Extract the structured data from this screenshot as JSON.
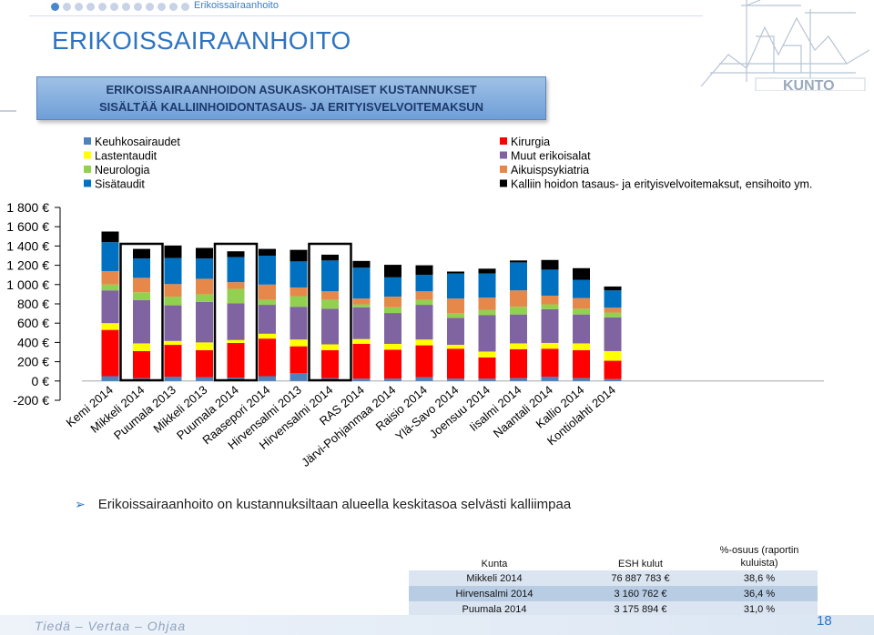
{
  "header": {
    "section_label": "Erikoissairaanhoito",
    "title": "ERIKOISSAIRAANHOITO",
    "banner_line1": "ERIKOISSAIRAANHOIDON ASUKASKOHTAISET KUSTANNUKSET",
    "banner_line2": "SISÄLTÄÄ KALLIINHOIDONTASAUS- JA ERITYISVELVOITEMAKSUN",
    "logo_text": "KUNTO"
  },
  "chart_data": {
    "type": "bar",
    "stacked": true,
    "categories": [
      "Kemi 2014",
      "Mikkeli 2014",
      "Puumala 2013",
      "Mikkeli 2013",
      "Puumala 2014",
      "Raasepori 2014",
      "Hirvensalmi 2013",
      "Hirvensalmi 2014",
      "RAS 2014",
      "Järvi-Pohjanmaa 2014",
      "Raisio 2014",
      "Ylä-Savo 2014",
      "Joensuu 2014",
      "Iisalmi 2014",
      "Naantali 2014",
      "Kallio 2014",
      "Kontiolahti 2014"
    ],
    "ylim": [
      -200,
      1800
    ],
    "y_ticks": [
      "1 800 €",
      "1 600 €",
      "1 400 €",
      "1 200 €",
      "1 000 €",
      "800 €",
      "600 €",
      "400 €",
      "200 €",
      "0 €",
      "-200 €"
    ],
    "highlighted_categories": [
      "Mikkeli 2014",
      "Puumala 2014",
      "Hirvensalmi 2014"
    ],
    "legend": {
      "left": [
        "Keuhkosairaudet",
        "Lastentaudit",
        "Neurologia",
        "Sisätaudit"
      ],
      "right": [
        "Kirurgia",
        "Muut erikoisalat",
        "Aikuispsykiatria",
        "Kalliin hoidon tasaus- ja erityisvelvoitemaksut, ensihoito ym."
      ]
    },
    "series": [
      {
        "name": "Keuhkosairaudet",
        "color": "#4f81bd",
        "values": [
          50,
          30,
          45,
          40,
          35,
          50,
          80,
          30,
          25,
          25,
          40,
          25,
          25,
          30,
          45,
          30,
          20
        ]
      },
      {
        "name": "Kirurgia",
        "color": "#ff0000",
        "values": [
          480,
          280,
          330,
          280,
          360,
          390,
          280,
          290,
          360,
          300,
          330,
          310,
          220,
          300,
          290,
          290,
          190
        ]
      },
      {
        "name": "Lastentaudit",
        "color": "#ffff00",
        "values": [
          70,
          80,
          40,
          80,
          30,
          50,
          70,
          60,
          50,
          60,
          60,
          40,
          60,
          60,
          60,
          70,
          100
        ]
      },
      {
        "name": "Muut erikoisalat",
        "color": "#8064a2",
        "values": [
          340,
          450,
          370,
          420,
          380,
          300,
          340,
          370,
          330,
          320,
          360,
          280,
          380,
          300,
          350,
          300,
          350
        ]
      },
      {
        "name": "Neurologia",
        "color": "#92d050",
        "values": [
          60,
          80,
          90,
          80,
          150,
          50,
          110,
          90,
          30,
          60,
          50,
          50,
          50,
          80,
          50,
          60,
          50
        ]
      },
      {
        "name": "Aikuispsykiatria",
        "color": "#e7884b",
        "values": [
          140,
          150,
          130,
          160,
          70,
          160,
          90,
          90,
          60,
          110,
          90,
          150,
          130,
          170,
          90,
          110,
          50
        ]
      },
      {
        "name": "Sisätaudit",
        "color": "#0070c0",
        "values": [
          300,
          200,
          270,
          210,
          260,
          300,
          270,
          320,
          320,
          200,
          170,
          260,
          250,
          290,
          270,
          190,
          180
        ]
      },
      {
        "name": "Kalliin hoidon tasaus- ja erityisvelvoitemaksut, ensihoito ym.",
        "color": "#000000",
        "values": [
          110,
          100,
          130,
          110,
          60,
          70,
          120,
          60,
          70,
          130,
          100,
          20,
          50,
          20,
          100,
          120,
          40
        ]
      }
    ]
  },
  "bullet": {
    "text": "Erikoissairaanhoito on kustannuksiltaan alueella keskitasoa selvästi kalliimpaa"
  },
  "table": {
    "headers": [
      "Kunta",
      "ESH kulut",
      "%-osuus (raportin kuluista)"
    ],
    "rows": [
      [
        "Mikkeli 2014",
        "76 887 783 €",
        "38,6 %"
      ],
      [
        "Hirvensalmi 2014",
        "3 160 762 €",
        "36,4 %"
      ],
      [
        "Puumala 2014",
        "3 175 894 €",
        "31,0 %"
      ]
    ]
  },
  "footer": {
    "tagline": "Tiedä – Vertaa – Ohjaa",
    "page_number": "18"
  }
}
